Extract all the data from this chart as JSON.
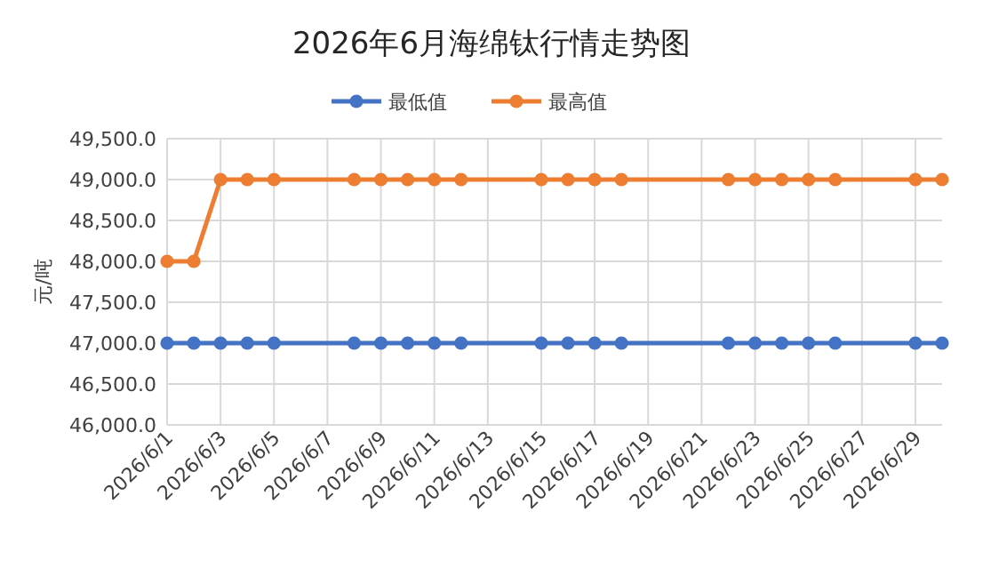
{
  "chart_data": {
    "type": "line",
    "title": "2026年6月海绵钛行情走势图",
    "ylabel": "元/吨",
    "x": [
      "2026-06-01",
      "2026-06-02",
      "2026-06-03",
      "2026-06-04",
      "2026-06-05",
      "2026-06-08",
      "2026-06-09",
      "2026-06-10",
      "2026-06-11",
      "2026-06-12",
      "2026-06-15",
      "2026-06-16",
      "2026-06-17",
      "2026-06-18",
      "2026-06-22",
      "2026-06-23",
      "2026-06-24",
      "2026-06-25",
      "2026-06-26",
      "2026-06-29",
      "2026-06-30"
    ],
    "series": [
      {
        "name": "最低值",
        "color": "#4472c4",
        "values": [
          47000,
          47000,
          47000,
          47000,
          47000,
          47000,
          47000,
          47000,
          47000,
          47000,
          47000,
          47000,
          47000,
          47000,
          47000,
          47000,
          47000,
          47000,
          47000,
          47000,
          47000
        ]
      },
      {
        "name": "最高值",
        "color": "#ed7d31",
        "values": [
          48000,
          48000,
          49000,
          49000,
          49000,
          49000,
          49000,
          49000,
          49000,
          49000,
          49000,
          49000,
          49000,
          49000,
          49000,
          49000,
          49000,
          49000,
          49000,
          49000,
          49000
        ]
      }
    ],
    "xlim": [
      "2026-06-01",
      "2026-06-30"
    ],
    "xticks": [
      {
        "value": "2026-06-01",
        "label": "2026/6/1"
      },
      {
        "value": "2026-06-03",
        "label": "2026/6/3"
      },
      {
        "value": "2026-06-05",
        "label": "2026/6/5"
      },
      {
        "value": "2026-06-07",
        "label": "2026/6/7"
      },
      {
        "value": "2026-06-09",
        "label": "2026/6/9"
      },
      {
        "value": "2026-06-11",
        "label": "2026/6/11"
      },
      {
        "value": "2026-06-13",
        "label": "2026/6/13"
      },
      {
        "value": "2026-06-15",
        "label": "2026/6/15"
      },
      {
        "value": "2026-06-17",
        "label": "2026/6/17"
      },
      {
        "value": "2026-06-19",
        "label": "2026/6/19"
      },
      {
        "value": "2026-06-21",
        "label": "2026/6/21"
      },
      {
        "value": "2026-06-23",
        "label": "2026/6/23"
      },
      {
        "value": "2026-06-25",
        "label": "2026/6/25"
      },
      {
        "value": "2026-06-27",
        "label": "2026/6/27"
      },
      {
        "value": "2026-06-29",
        "label": "2026/6/29"
      }
    ],
    "ylim": [
      46000,
      49500
    ],
    "yticks": [
      {
        "value": 46000,
        "label": "46,000.0"
      },
      {
        "value": 46500,
        "label": "46,500.0"
      },
      {
        "value": 47000,
        "label": "47,000.0"
      },
      {
        "value": 47500,
        "label": "47,500.0"
      },
      {
        "value": 48000,
        "label": "48,000.0"
      },
      {
        "value": 48500,
        "label": "48,500.0"
      },
      {
        "value": 49000,
        "label": "49,000.0"
      },
      {
        "value": 49500,
        "label": "49,500.0"
      }
    ],
    "grid": true,
    "legend": "top",
    "marker": "circle",
    "line_style": "solid"
  }
}
